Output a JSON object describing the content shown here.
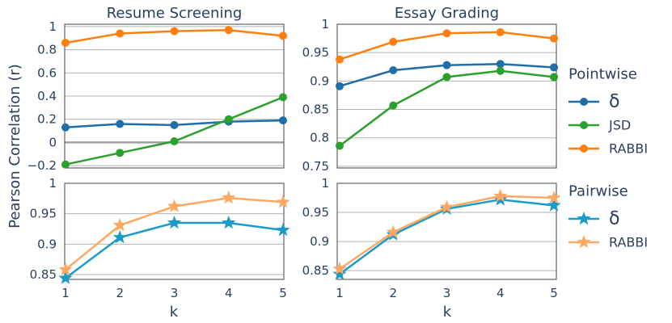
{
  "y_axis_label": "Pearson Correlation (r)",
  "x_axis_label": "k",
  "legends": [
    {
      "title": "Pointwise",
      "items": [
        {
          "label": "δ",
          "color": "#1f6ea8",
          "marker": "circle"
        },
        {
          "label": "JSD",
          "color": "#2ca02c",
          "marker": "circle"
        },
        {
          "label": "RABBI",
          "color": "#ff7f0e",
          "marker": "circle"
        }
      ]
    },
    {
      "title": "Pairwise",
      "items": [
        {
          "label": "δ",
          "color": "#1a9bc9",
          "marker": "star"
        },
        {
          "label": "RABBI",
          "color": "#ffa862",
          "marker": "star"
        }
      ]
    }
  ],
  "chart_data": [
    {
      "type": "line",
      "title": "Resume Screening",
      "x": [
        1,
        2,
        3,
        4,
        5
      ],
      "xticks": [
        "1",
        "2",
        "3",
        "4",
        "5"
      ],
      "ylim": [
        -0.22,
        1.02
      ],
      "yticks": [
        -0.2,
        0,
        0.2,
        0.4,
        0.6,
        0.8,
        1
      ],
      "ytick_labels": [
        "−0.2",
        "0",
        "0.2",
        "0.4",
        "0.6",
        "0.8",
        "1"
      ],
      "zero_line": true,
      "series": [
        {
          "name": "δ",
          "color": "#1f6ea8",
          "marker": "circle",
          "values": [
            0.13,
            0.16,
            0.15,
            0.18,
            0.19
          ]
        },
        {
          "name": "JSD",
          "color": "#2ca02c",
          "marker": "circle",
          "values": [
            -0.19,
            -0.09,
            0.01,
            0.2,
            0.39
          ]
        },
        {
          "name": "RABBI",
          "color": "#ff7f0e",
          "marker": "circle",
          "values": [
            0.86,
            0.94,
            0.96,
            0.97,
            0.92
          ]
        }
      ]
    },
    {
      "type": "line",
      "title": "Essay Grading",
      "x": [
        1,
        2,
        3,
        4,
        5
      ],
      "xticks": [
        "1",
        "2",
        "3",
        "4",
        "5"
      ],
      "ylim": [
        0.747,
        1.0
      ],
      "yticks": [
        0.75,
        0.8,
        0.85,
        0.9,
        0.95,
        1
      ],
      "ytick_labels": [
        "0.75",
        "0.8",
        "0.85",
        "0.9",
        "0.95",
        "1"
      ],
      "zero_line": false,
      "series": [
        {
          "name": "δ",
          "color": "#1f6ea8",
          "marker": "circle",
          "values": [
            0.891,
            0.919,
            0.928,
            0.93,
            0.924
          ]
        },
        {
          "name": "JSD",
          "color": "#2ca02c",
          "marker": "circle",
          "values": [
            0.786,
            0.857,
            0.907,
            0.918,
            0.907
          ]
        },
        {
          "name": "RABBI",
          "color": "#ff7f0e",
          "marker": "circle",
          "values": [
            0.938,
            0.969,
            0.984,
            0.986,
            0.975
          ]
        }
      ]
    },
    {
      "type": "line",
      "title": "",
      "x": [
        1,
        2,
        3,
        4,
        5
      ],
      "xticks": [
        "1",
        "2",
        "3",
        "4",
        "5"
      ],
      "ylim": [
        0.842,
        1.0
      ],
      "yticks": [
        0.85,
        0.9,
        0.95,
        1
      ],
      "ytick_labels": [
        "0.85",
        "0.9",
        "0.95",
        "1"
      ],
      "zero_line": false,
      "series": [
        {
          "name": "δ",
          "color": "#1a9bc9",
          "marker": "star",
          "values": [
            0.844,
            0.911,
            0.935,
            0.935,
            0.923
          ]
        },
        {
          "name": "RABBI",
          "color": "#ffa862",
          "marker": "star",
          "values": [
            0.858,
            0.931,
            0.962,
            0.976,
            0.969
          ]
        }
      ]
    },
    {
      "type": "line",
      "title": "",
      "x": [
        1,
        2,
        3,
        4,
        5
      ],
      "xticks": [
        "1",
        "2",
        "3",
        "4",
        "5"
      ],
      "ylim": [
        0.835,
        1.0
      ],
      "yticks": [
        0.85,
        0.9,
        0.95,
        1
      ],
      "ytick_labels": [
        "0.85",
        "0.9",
        "0.95",
        "1"
      ],
      "zero_line": false,
      "series": [
        {
          "name": "δ",
          "color": "#1a9bc9",
          "marker": "star",
          "values": [
            0.844,
            0.912,
            0.956,
            0.972,
            0.962
          ]
        },
        {
          "name": "RABBI",
          "color": "#ffa862",
          "marker": "star",
          "values": [
            0.853,
            0.916,
            0.959,
            0.978,
            0.975
          ]
        }
      ]
    }
  ]
}
